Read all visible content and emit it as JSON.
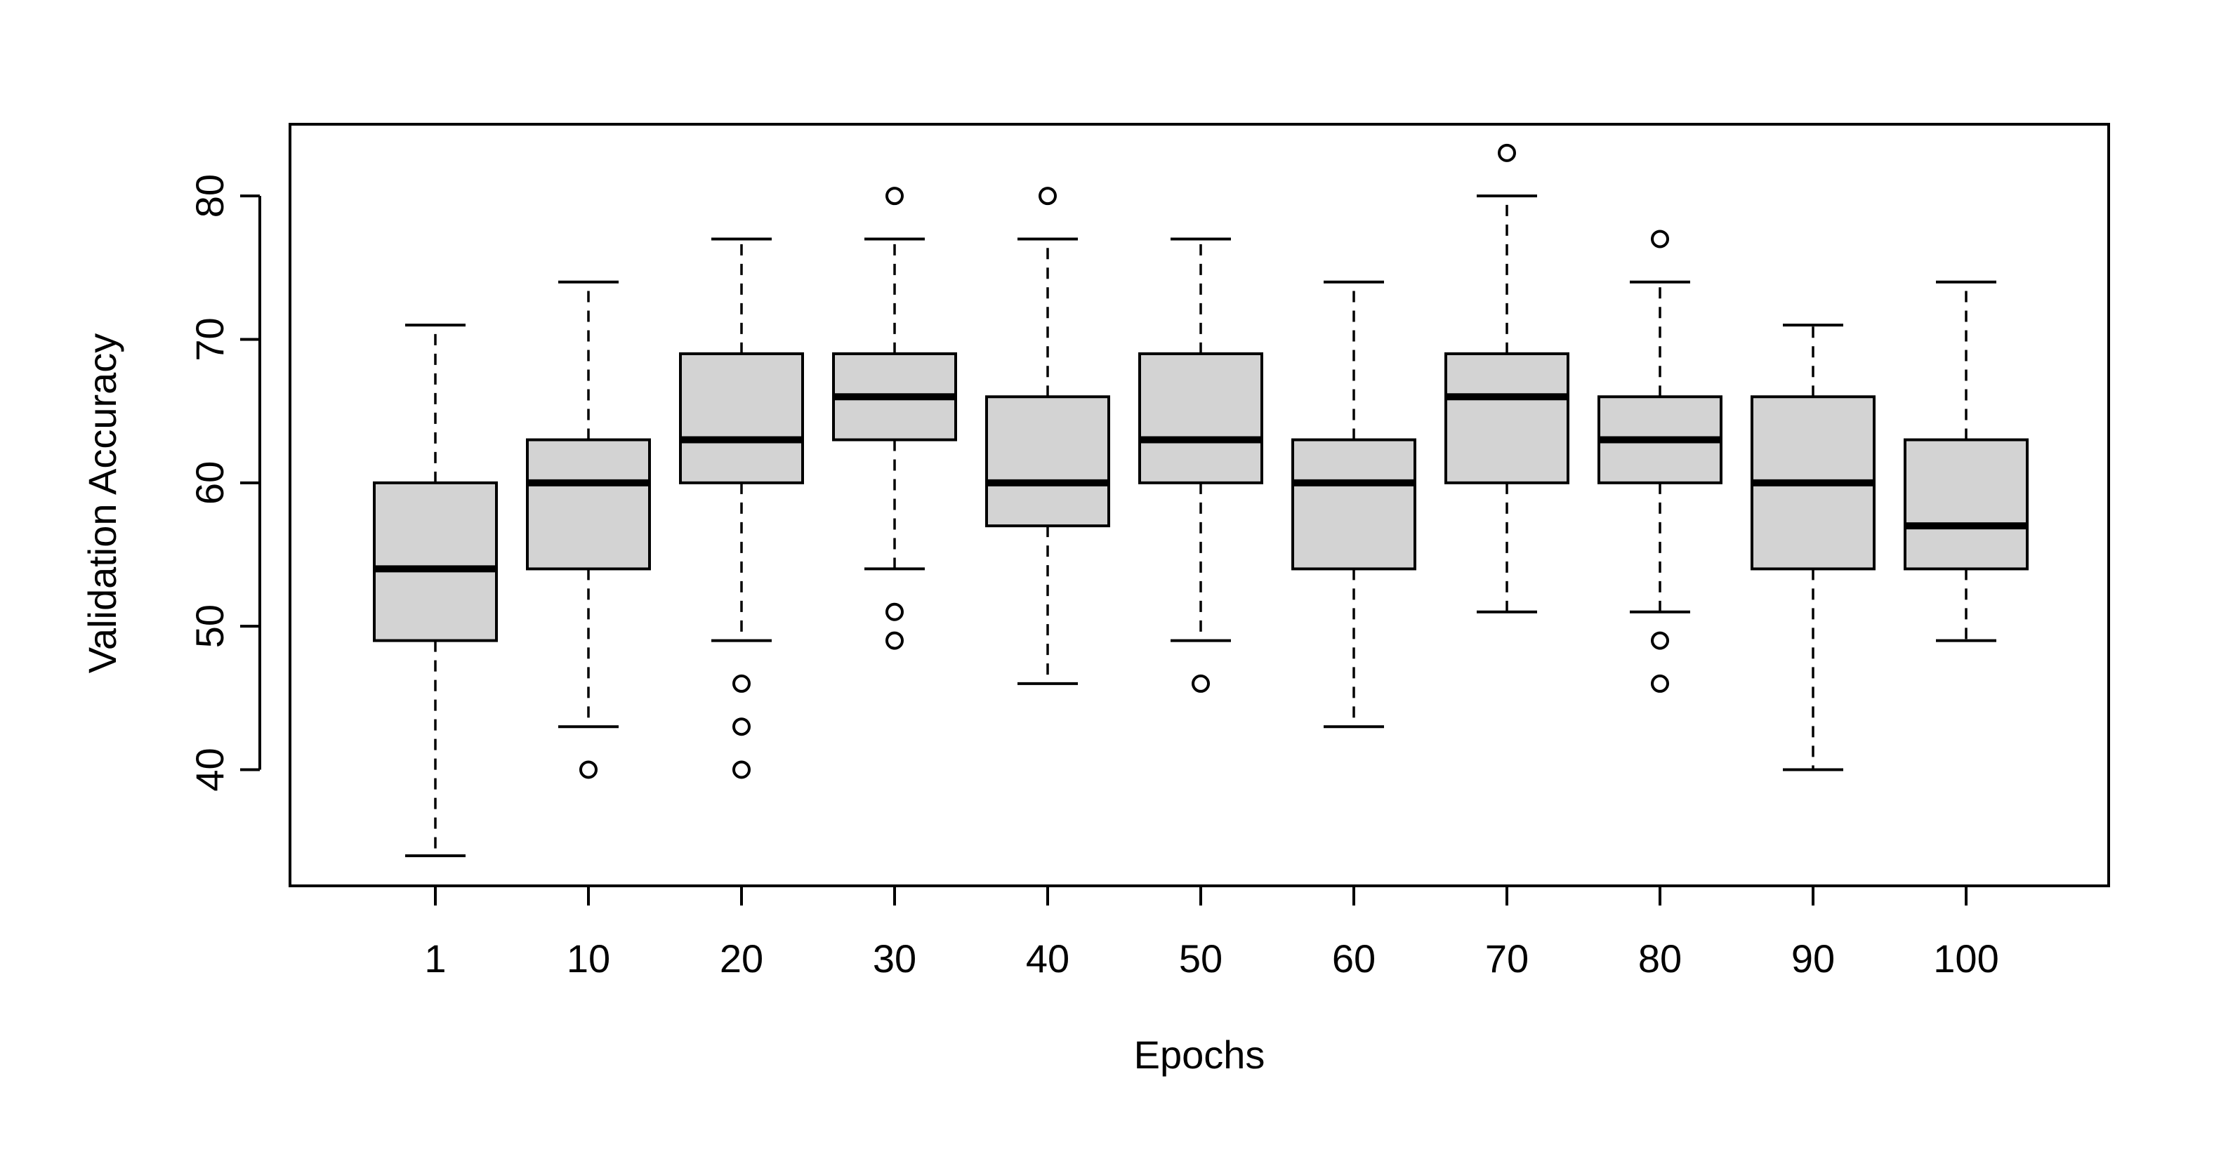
{
  "chart_data": {
    "type": "boxplot",
    "title": "",
    "xlabel": "Epochs",
    "ylabel": "Validation Accuracy",
    "ylim": [
      31.9,
      85.0
    ],
    "yticks": [
      40,
      50,
      60,
      70,
      80
    ],
    "categories": [
      "1",
      "10",
      "20",
      "30",
      "40",
      "50",
      "60",
      "70",
      "80",
      "90",
      "100"
    ],
    "boxes": [
      {
        "category": "1",
        "whisker_low": 34,
        "q1": 49,
        "median": 54,
        "q3": 60,
        "whisker_high": 71,
        "outliers": []
      },
      {
        "category": "10",
        "whisker_low": 43,
        "q1": 54,
        "median": 60,
        "q3": 63,
        "whisker_high": 74,
        "outliers": [
          40
        ]
      },
      {
        "category": "20",
        "whisker_low": 49,
        "q1": 60,
        "median": 63,
        "q3": 69,
        "whisker_high": 77,
        "outliers": [
          46,
          43,
          40
        ]
      },
      {
        "category": "30",
        "whisker_low": 54,
        "q1": 63,
        "median": 66,
        "q3": 69,
        "whisker_high": 77,
        "outliers": [
          80,
          51,
          49
        ]
      },
      {
        "category": "40",
        "whisker_low": 46,
        "q1": 57,
        "median": 60,
        "q3": 66,
        "whisker_high": 77,
        "outliers": [
          80
        ]
      },
      {
        "category": "50",
        "whisker_low": 49,
        "q1": 60,
        "median": 63,
        "q3": 69,
        "whisker_high": 77,
        "outliers": [
          46
        ]
      },
      {
        "category": "60",
        "whisker_low": 43,
        "q1": 54,
        "median": 60,
        "q3": 63,
        "whisker_high": 74,
        "outliers": []
      },
      {
        "category": "70",
        "whisker_low": 51,
        "q1": 60,
        "median": 66,
        "q3": 69,
        "whisker_high": 80,
        "outliers": [
          83
        ]
      },
      {
        "category": "80",
        "whisker_low": 51,
        "q1": 60,
        "median": 63,
        "q3": 66,
        "whisker_high": 74,
        "outliers": [
          77,
          49,
          46
        ]
      },
      {
        "category": "90",
        "whisker_low": 40,
        "q1": 54,
        "median": 60,
        "q3": 66,
        "whisker_high": 71,
        "outliers": []
      },
      {
        "category": "100",
        "whisker_low": 49,
        "q1": 54,
        "median": 57,
        "q3": 63,
        "whisker_high": 74,
        "outliers": []
      }
    ],
    "colors": {
      "box_fill": "#d3d3d3",
      "stroke": "#000000",
      "background": "#ffffff"
    }
  }
}
